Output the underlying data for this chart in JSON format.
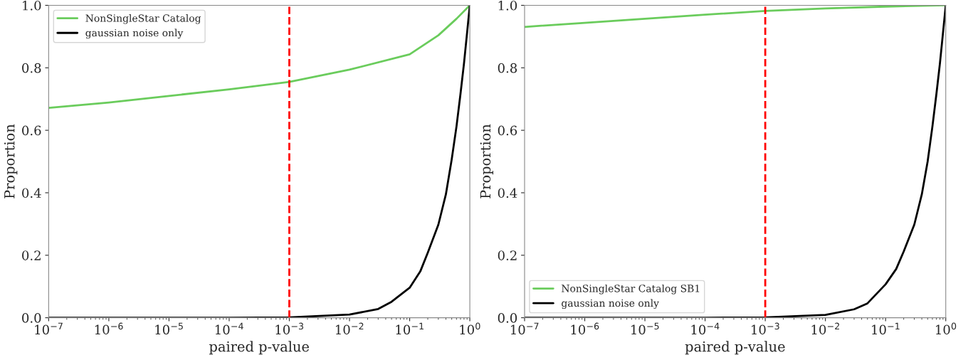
{
  "chart_data": [
    {
      "type": "line",
      "xlabel": "paired p-value",
      "ylabel": "Proportion",
      "log": "x",
      "grid": false,
      "legend": "top left",
      "line_style": "solid",
      "marker": "none",
      "xlim": [
        1e-07,
        1
      ],
      "xticks": [
        {
          "value": 1e-07,
          "label": "10$^{−7}$"
        },
        {
          "value": 1e-06,
          "label": "10$^{−6}$"
        },
        {
          "value": 1e-05,
          "label": "10$^{−5}$"
        },
        {
          "value": 0.0001,
          "label": "10$^{−4}$"
        },
        {
          "value": 0.001,
          "label": "10$^{−3}$"
        },
        {
          "value": 0.01,
          "label": "10$^{−2}$"
        },
        {
          "value": 0.1,
          "label": "10$^{−1}$"
        },
        {
          "value": 1,
          "label": "10$^{0}$"
        }
      ],
      "ylim": [
        0,
        1
      ],
      "yticks": [
        {
          "value": 0,
          "label": "0.0"
        },
        {
          "value": 0.2,
          "label": "0.2"
        },
        {
          "value": 0.4,
          "label": "0.4"
        },
        {
          "value": 0.6,
          "label": "0.6"
        },
        {
          "value": 0.8,
          "label": "0.8"
        },
        {
          "value": 1,
          "label": "1.0"
        }
      ],
      "series": [
        {
          "name": "NonSingleStar Catalog",
          "color": "#6acc5c",
          "x": [
            1e-07,
            1e-06,
            1e-05,
            0.0001,
            0.001,
            0.01,
            0.1,
            0.3,
            0.6,
            1
          ],
          "values": [
            0.672,
            0.689,
            0.71,
            0.731,
            0.755,
            0.794,
            0.843,
            0.904,
            0.957,
            1.0
          ]
        },
        {
          "name": "gaussian noise only",
          "color": "#000000",
          "x": [
            1e-07,
            0.0001,
            0.001,
            0.01,
            0.03,
            0.05,
            0.1,
            0.15,
            0.2,
            0.3,
            0.4,
            0.5,
            0.6,
            0.7,
            0.8,
            0.9,
            1
          ],
          "values": [
            0,
            0,
            0.001,
            0.01,
            0.028,
            0.051,
            0.096,
            0.148,
            0.208,
            0.298,
            0.395,
            0.507,
            0.612,
            0.717,
            0.814,
            0.912,
            1.0
          ]
        }
      ],
      "ref_lines": [
        {
          "axis": "x",
          "value": 0.001,
          "color": "#ff0000",
          "line_style": "dashed"
        }
      ]
    },
    {
      "type": "line",
      "xlabel": "paired p-value",
      "ylabel": "Proportion",
      "log": "x",
      "grid": false,
      "legend": "bottom left",
      "line_style": "solid",
      "marker": "none",
      "xlim": [
        1e-07,
        1
      ],
      "xticks": [
        {
          "value": 1e-07,
          "label": "10$^{−7}$"
        },
        {
          "value": 1e-06,
          "label": "10$^{−6}$"
        },
        {
          "value": 1e-05,
          "label": "10$^{−5}$"
        },
        {
          "value": 0.0001,
          "label": "10$^{−4}$"
        },
        {
          "value": 0.001,
          "label": "10$^{−3}$"
        },
        {
          "value": 0.01,
          "label": "10$^{−2}$"
        },
        {
          "value": 0.1,
          "label": "10$^{−1}$"
        },
        {
          "value": 1,
          "label": "10$^{0}$"
        }
      ],
      "ylim": [
        0,
        1
      ],
      "yticks": [
        {
          "value": 0,
          "label": "0.0"
        },
        {
          "value": 0.2,
          "label": "0.2"
        },
        {
          "value": 0.4,
          "label": "0.4"
        },
        {
          "value": 0.6,
          "label": "0.6"
        },
        {
          "value": 0.8,
          "label": "0.8"
        },
        {
          "value": 1,
          "label": "1.0"
        }
      ],
      "series": [
        {
          "name": "NonSingleStar Catalog SB1",
          "color": "#6acc5c",
          "x": [
            1e-07,
            1e-06,
            1e-05,
            0.0001,
            0.001,
            0.01,
            0.1,
            1
          ],
          "values": [
            0.931,
            0.944,
            0.957,
            0.97,
            0.982,
            0.99,
            0.996,
            1.0
          ]
        },
        {
          "name": "gaussian noise only",
          "color": "#000000",
          "x": [
            1e-07,
            0.0001,
            0.001,
            0.01,
            0.03,
            0.05,
            0.1,
            0.15,
            0.2,
            0.3,
            0.4,
            0.5,
            0.6,
            0.7,
            0.8,
            0.9,
            1
          ],
          "values": [
            0,
            0,
            0.001,
            0.009,
            0.027,
            0.046,
            0.107,
            0.156,
            0.212,
            0.298,
            0.395,
            0.5,
            0.612,
            0.717,
            0.814,
            0.912,
            1.0
          ]
        }
      ],
      "ref_lines": [
        {
          "axis": "x",
          "value": 0.001,
          "color": "#ff0000",
          "line_style": "dashed"
        }
      ]
    }
  ]
}
